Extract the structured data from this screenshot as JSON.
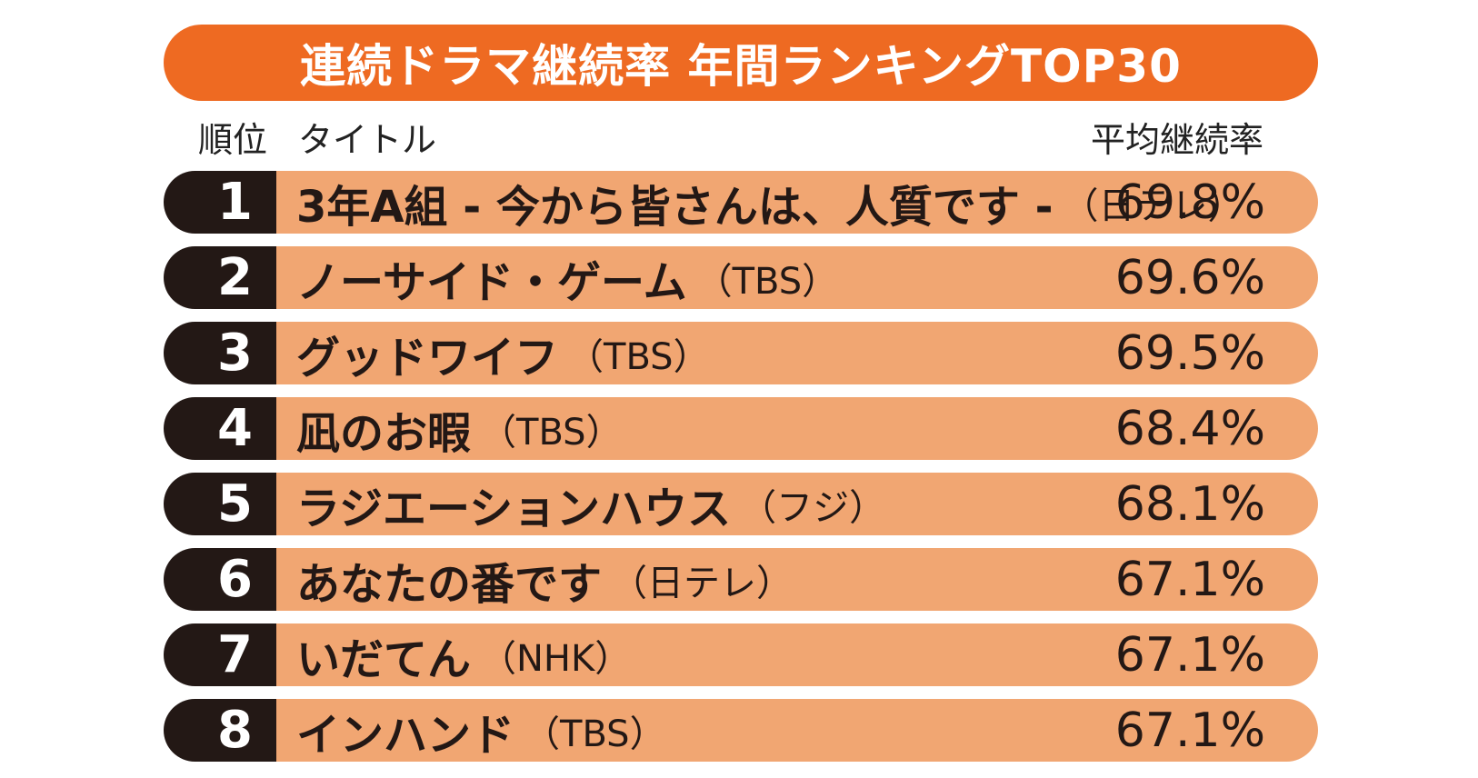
{
  "title": "連続ドラマ継続率 年間ランキングTOP30",
  "headers": {
    "rank": "順位",
    "title": "タイトル",
    "rate": "平均継続率"
  },
  "colors": {
    "banner": "#ee6a22",
    "rank_bg": "#231815",
    "bar_bg": "#f1a672"
  },
  "chart_data": {
    "type": "table",
    "columns": [
      "順位",
      "タイトル",
      "平均継続率"
    ],
    "rows": [
      {
        "rank": "1",
        "title": "3年A組 - 今から皆さんは、人質です -",
        "network": "（日テレ）",
        "rate": "69.8%",
        "value": 69.8
      },
      {
        "rank": "2",
        "title": "ノーサイド・ゲーム",
        "network": "（TBS）",
        "rate": "69.6%",
        "value": 69.6
      },
      {
        "rank": "3",
        "title": "グッドワイフ",
        "network": "（TBS）",
        "rate": "69.5%",
        "value": 69.5
      },
      {
        "rank": "4",
        "title": "凪のお暇",
        "network": "（TBS）",
        "rate": "68.4%",
        "value": 68.4
      },
      {
        "rank": "5",
        "title": "ラジエーションハウス",
        "network": "（フジ）",
        "rate": "68.1%",
        "value": 68.1
      },
      {
        "rank": "6",
        "title": "あなたの番です",
        "network": "（日テレ）",
        "rate": "67.1%",
        "value": 67.1
      },
      {
        "rank": "7",
        "title": "いだてん",
        "network": "（NHK）",
        "rate": "67.1%",
        "value": 67.1
      },
      {
        "rank": "8",
        "title": "インハンド",
        "network": "（TBS）",
        "rate": "67.1%",
        "value": 67.1
      }
    ]
  }
}
